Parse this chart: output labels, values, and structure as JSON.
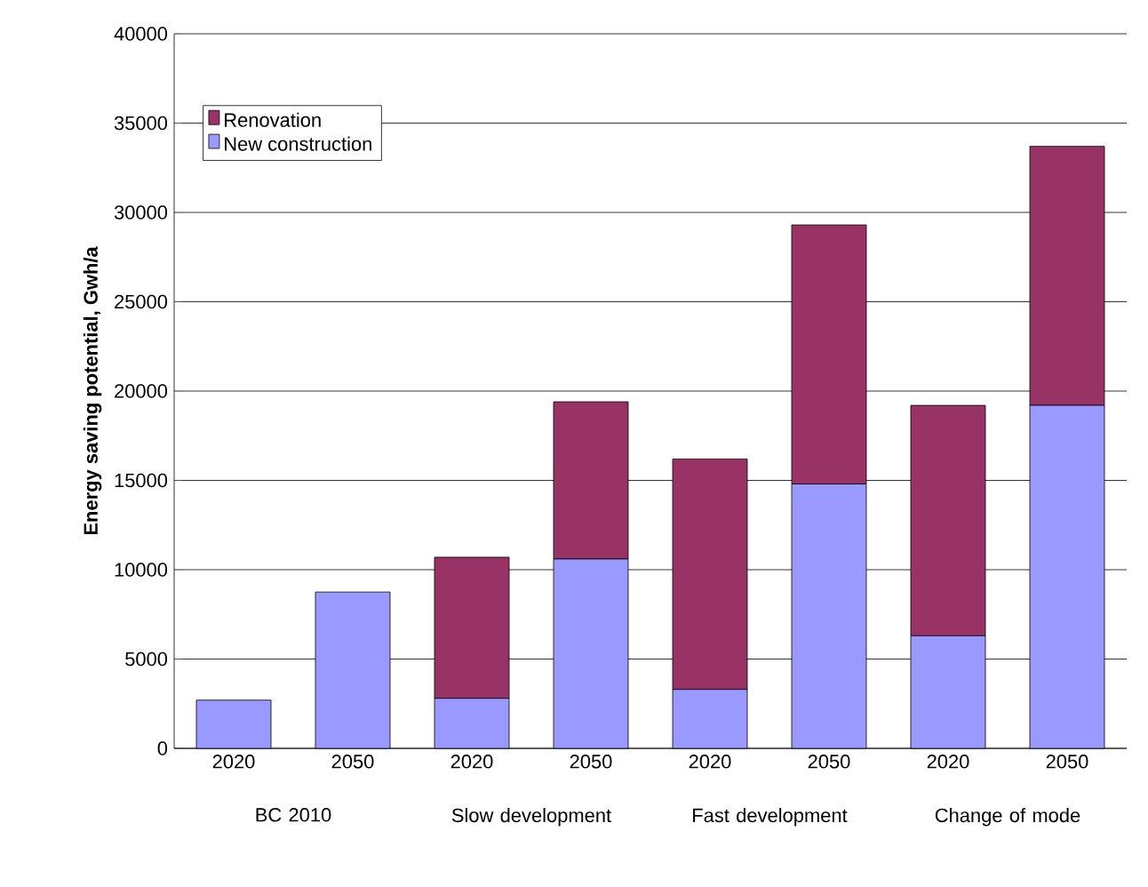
{
  "chart_data": {
    "type": "bar",
    "stacked": true,
    "ylabel": "Energy saving potential, Gwh/a",
    "categories": [
      "2020",
      "2050",
      "2020",
      "2050",
      "2020",
      "2050",
      "2020",
      "2050"
    ],
    "series": [
      {
        "name": "New construction",
        "color": "#9999ff",
        "values": [
          2700,
          8750,
          2800,
          10600,
          3300,
          14800,
          6300,
          19200
        ]
      },
      {
        "name": "Renovation",
        "color": "#993366",
        "values": [
          0,
          0,
          7900,
          8800,
          12900,
          14500,
          12900,
          14500
        ]
      }
    ],
    "annotations": [
      "BC 2010",
      "Slow development",
      "Fast development",
      "Change of mode"
    ],
    "ylim": [
      0,
      40000
    ],
    "yticks": [
      0,
      5000,
      10000,
      15000,
      20000,
      25000,
      30000,
      35000,
      40000
    ],
    "grid": "y",
    "legend": "top left"
  }
}
